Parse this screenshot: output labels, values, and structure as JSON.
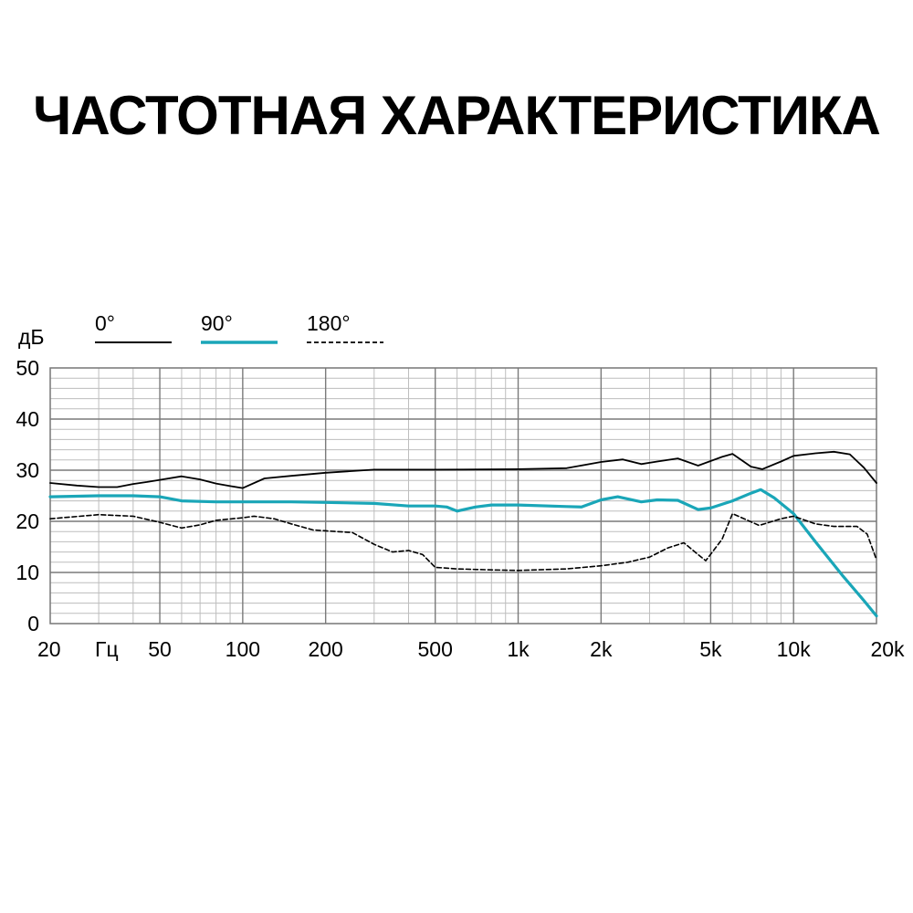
{
  "title": "ЧАСТОТНАЯ ХАРАКТЕРИСТИКА",
  "chart_data": {
    "type": "line",
    "title": "ЧАСТОТНАЯ ХАРАКТЕРИСТИКА",
    "y_unit": "дБ",
    "x_unit": "Гц",
    "x_scale": "log",
    "xlim": [
      20,
      20000
    ],
    "ylim": [
      0,
      50
    ],
    "grid": true,
    "legend_position": "top-left",
    "y_ticks": [
      {
        "value": 0,
        "label": "0"
      },
      {
        "value": 10,
        "label": "10"
      },
      {
        "value": 20,
        "label": "20"
      },
      {
        "value": 30,
        "label": "30"
      },
      {
        "value": 40,
        "label": "40"
      },
      {
        "value": 50,
        "label": "50"
      }
    ],
    "x_ticks": [
      {
        "value": 20,
        "label": "20"
      },
      {
        "value": 50,
        "label": "50"
      },
      {
        "value": 100,
        "label": "100"
      },
      {
        "value": 200,
        "label": "200"
      },
      {
        "value": 500,
        "label": "500"
      },
      {
        "value": 1000,
        "label": "1k"
      },
      {
        "value": 2000,
        "label": "2k"
      },
      {
        "value": 5000,
        "label": "5k"
      },
      {
        "value": 10000,
        "label": "10k"
      },
      {
        "value": 20000,
        "label": "20k"
      }
    ],
    "series": [
      {
        "name": "0°",
        "color": "#000000",
        "style": "solid",
        "points": [
          [
            20,
            27.5
          ],
          [
            25,
            27
          ],
          [
            30,
            26.7
          ],
          [
            35,
            26.7
          ],
          [
            40,
            27.3
          ],
          [
            45,
            27.7
          ],
          [
            50,
            28.1
          ],
          [
            60,
            28.8
          ],
          [
            70,
            28.2
          ],
          [
            80,
            27.4
          ],
          [
            90,
            26.9
          ],
          [
            100,
            26.5
          ],
          [
            120,
            28.4
          ],
          [
            150,
            28.9
          ],
          [
            200,
            29.5
          ],
          [
            300,
            30.1
          ],
          [
            500,
            30.1
          ],
          [
            1000,
            30.2
          ],
          [
            1500,
            30.4
          ],
          [
            2000,
            31.6
          ],
          [
            2400,
            32.1
          ],
          [
            2800,
            31.2
          ],
          [
            3200,
            31.7
          ],
          [
            3800,
            32.3
          ],
          [
            4500,
            30.9
          ],
          [
            5500,
            32.6
          ],
          [
            6000,
            33.2
          ],
          [
            7000,
            30.7
          ],
          [
            7700,
            30.2
          ],
          [
            9000,
            31.7
          ],
          [
            10000,
            32.8
          ],
          [
            12000,
            33.3
          ],
          [
            14000,
            33.6
          ],
          [
            16000,
            33.1
          ],
          [
            18000,
            30.5
          ],
          [
            20000,
            27.5
          ]
        ]
      },
      {
        "name": "90°",
        "color": "#1aa6b8",
        "style": "solid",
        "points": [
          [
            20,
            24.8
          ],
          [
            30,
            25
          ],
          [
            40,
            25
          ],
          [
            50,
            24.8
          ],
          [
            60,
            24
          ],
          [
            80,
            23.8
          ],
          [
            100,
            23.8
          ],
          [
            150,
            23.8
          ],
          [
            200,
            23.7
          ],
          [
            300,
            23.5
          ],
          [
            400,
            23
          ],
          [
            500,
            23
          ],
          [
            550,
            22.8
          ],
          [
            600,
            22
          ],
          [
            700,
            22.8
          ],
          [
            800,
            23.2
          ],
          [
            1000,
            23.2
          ],
          [
            1500,
            22.9
          ],
          [
            1700,
            22.8
          ],
          [
            2000,
            24.2
          ],
          [
            2300,
            24.8
          ],
          [
            2800,
            23.8
          ],
          [
            3200,
            24.2
          ],
          [
            3800,
            24.1
          ],
          [
            4500,
            22.3
          ],
          [
            5000,
            22.6
          ],
          [
            6000,
            24
          ],
          [
            7000,
            25.5
          ],
          [
            7600,
            26.2
          ],
          [
            8500,
            24.6
          ],
          [
            10000,
            21.5
          ],
          [
            12000,
            16
          ],
          [
            15000,
            9.5
          ],
          [
            18000,
            4.5
          ],
          [
            20000,
            1.5
          ]
        ]
      },
      {
        "name": "180°",
        "color": "#000000",
        "style": "dashed",
        "points": [
          [
            20,
            20.5
          ],
          [
            30,
            21.3
          ],
          [
            40,
            21
          ],
          [
            50,
            19.8
          ],
          [
            60,
            18.7
          ],
          [
            70,
            19.3
          ],
          [
            80,
            20.2
          ],
          [
            100,
            20.7
          ],
          [
            110,
            21
          ],
          [
            130,
            20.5
          ],
          [
            150,
            19.5
          ],
          [
            180,
            18.3
          ],
          [
            250,
            17.8
          ],
          [
            300,
            15.5
          ],
          [
            350,
            14
          ],
          [
            400,
            14.3
          ],
          [
            450,
            13.5
          ],
          [
            500,
            11
          ],
          [
            600,
            10.7
          ],
          [
            800,
            10.5
          ],
          [
            1000,
            10.4
          ],
          [
            1500,
            10.7
          ],
          [
            2000,
            11.3
          ],
          [
            2500,
            12
          ],
          [
            3000,
            13
          ],
          [
            3500,
            14.8
          ],
          [
            4000,
            15.8
          ],
          [
            4500,
            13.5
          ],
          [
            4800,
            12.3
          ],
          [
            5500,
            16.5
          ],
          [
            6000,
            21.5
          ],
          [
            7500,
            19.2
          ],
          [
            9000,
            20.5
          ],
          [
            10000,
            21
          ],
          [
            12000,
            19.5
          ],
          [
            14000,
            19
          ],
          [
            17000,
            19
          ],
          [
            18500,
            17.5
          ],
          [
            20000,
            12.5
          ]
        ]
      }
    ]
  }
}
